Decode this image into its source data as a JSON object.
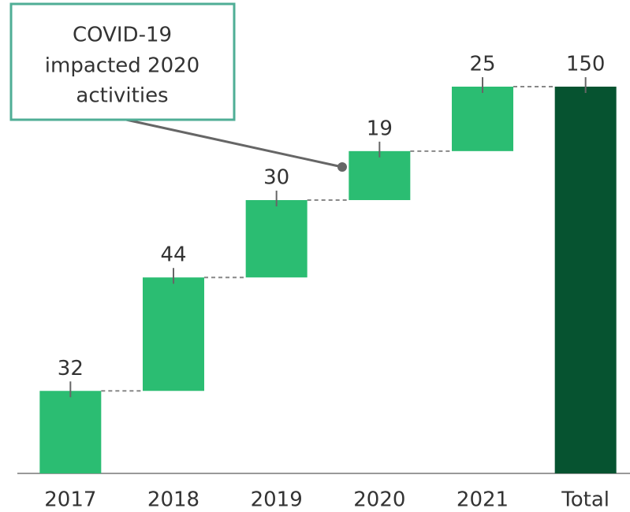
{
  "chart_data": {
    "type": "waterfall",
    "categories": [
      "2017",
      "2018",
      "2019",
      "2020",
      "2021",
      "Total"
    ],
    "values": [
      32,
      44,
      30,
      19,
      25,
      150
    ],
    "color": "#2bbd72",
    "total_color": "#065330",
    "annotation": [
      "COVID-19",
      "impacted 2020",
      "activities"
    ]
  }
}
